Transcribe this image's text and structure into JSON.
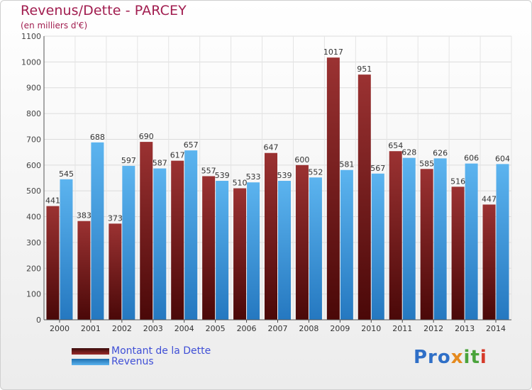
{
  "chart_data": {
    "type": "bar",
    "title": "Revenus/Dette - PARCEY",
    "subtitle": "(en milliers d'€)",
    "categories": [
      "2000",
      "2001",
      "2002",
      "2003",
      "2004",
      "2005",
      "2006",
      "2007",
      "2008",
      "2009",
      "2010",
      "2011",
      "2012",
      "2013",
      "2014"
    ],
    "series": [
      {
        "name": "Montant de la Dette",
        "color": "#7a1c1c",
        "values": [
          441,
          383,
          373,
          690,
          617,
          557,
          510,
          647,
          600,
          1017,
          951,
          654,
          585,
          516,
          447
        ]
      },
      {
        "name": "Revenus",
        "color": "#3a9be0",
        "values": [
          545,
          688,
          597,
          587,
          657,
          539,
          533,
          539,
          552,
          581,
          567,
          628,
          626,
          606,
          604
        ]
      }
    ],
    "ylim": [
      0,
      1100
    ],
    "yticks": [
      0,
      100,
      200,
      300,
      400,
      500,
      600,
      700,
      800,
      900,
      1000,
      1100
    ],
    "grid": true,
    "legend": "bottom-left"
  },
  "logo": {
    "text": "Proxiti",
    "parts": [
      "Pro",
      "x",
      "it",
      "i"
    ]
  }
}
